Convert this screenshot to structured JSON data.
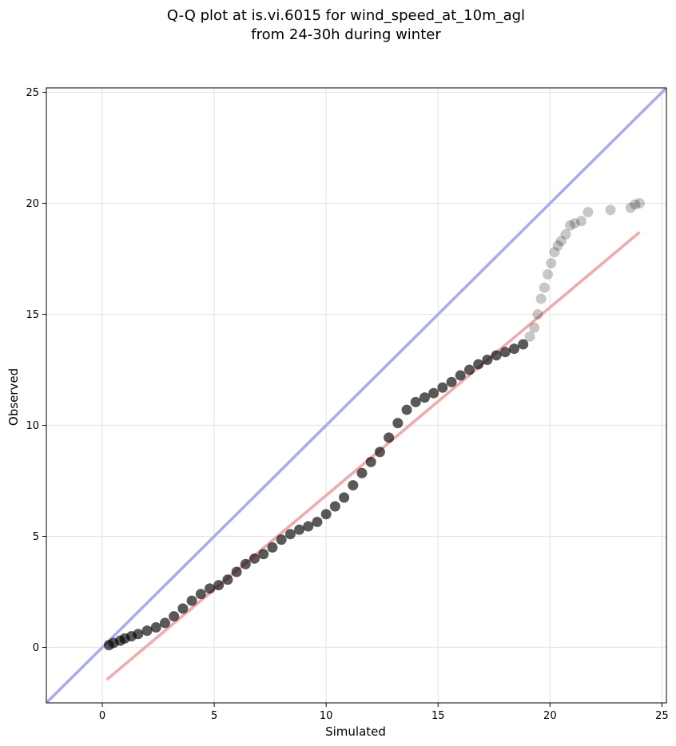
{
  "chart_data": {
    "type": "scatter",
    "title_line1": "Q-Q plot at is.vi.6015 for wind_speed_at_10m_agl",
    "title_line2": "from 24-30h during winter",
    "xlabel": "Simulated",
    "ylabel": "Observed",
    "xlim": [
      -2.5,
      25.2
    ],
    "ylim": [
      -2.5,
      25.2
    ],
    "xticks": [
      0,
      5,
      10,
      15,
      20,
      25
    ],
    "yticks": [
      0,
      5,
      10,
      15,
      20,
      25
    ],
    "grid": true,
    "colors": {
      "points": "#000000",
      "identity_line": "#a8abf2",
      "fit_line": "#f4a8a8"
    },
    "identity_line": {
      "x": [
        -2.5,
        25.2
      ],
      "y": [
        -2.5,
        25.2
      ]
    },
    "fit_line": {
      "x": [
        0.2,
        24.0
      ],
      "y": [
        -1.45,
        18.7
      ]
    },
    "series": [
      {
        "values_x": [
          0.3,
          0.5,
          0.8,
          1.0,
          1.3,
          1.6,
          2.0,
          2.4,
          2.8,
          3.2,
          3.6,
          4.0,
          4.4,
          4.8,
          5.2,
          5.6,
          6.0,
          6.4,
          6.8,
          7.2,
          7.6,
          8.0,
          8.4,
          8.8,
          9.2,
          9.6,
          10.0,
          10.4,
          10.8,
          11.2,
          11.6,
          12.0,
          12.4,
          12.8,
          13.2,
          13.6,
          14.0,
          14.4,
          14.8,
          15.2,
          15.6,
          16.0,
          16.4,
          16.8,
          17.2,
          17.6,
          18.0,
          18.4,
          18.8,
          19.1,
          19.3,
          19.45,
          19.6,
          19.75,
          19.9,
          20.05,
          20.2,
          20.35,
          20.5,
          20.7,
          20.9,
          21.1,
          21.4,
          21.7,
          22.7,
          23.6,
          23.8,
          24.0
        ],
        "values_y": [
          0.1,
          0.2,
          0.3,
          0.4,
          0.5,
          0.6,
          0.75,
          0.9,
          1.1,
          1.4,
          1.75,
          2.1,
          2.4,
          2.65,
          2.8,
          3.05,
          3.4,
          3.75,
          4.0,
          4.2,
          4.5,
          4.85,
          5.1,
          5.3,
          5.45,
          5.65,
          6.0,
          6.35,
          6.75,
          7.3,
          7.85,
          8.35,
          8.8,
          9.45,
          10.1,
          10.7,
          11.05,
          11.25,
          11.45,
          11.7,
          11.95,
          12.25,
          12.5,
          12.75,
          12.95,
          13.15,
          13.3,
          13.45,
          13.65,
          14.0,
          14.4,
          15.0,
          15.7,
          16.2,
          16.8,
          17.3,
          17.8,
          18.1,
          18.3,
          18.6,
          19.0,
          19.1,
          19.2,
          19.6,
          19.7,
          19.8,
          19.95,
          20.0
        ]
      }
    ]
  }
}
